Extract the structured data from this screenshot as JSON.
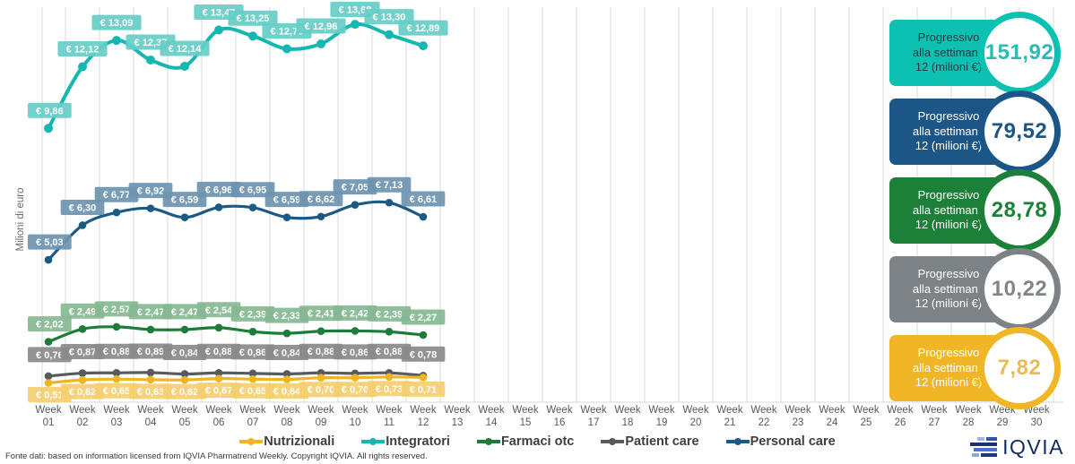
{
  "chart_data": {
    "type": "line",
    "title": "",
    "ylabel": "Milioni di euro",
    "x_tick_prefix": "Week",
    "categories": [
      "01",
      "02",
      "03",
      "04",
      "05",
      "06",
      "07",
      "08",
      "09",
      "10",
      "11",
      "12",
      "13",
      "14",
      "15",
      "16",
      "17",
      "18",
      "19",
      "20",
      "21",
      "22",
      "23",
      "24",
      "25",
      "26",
      "27",
      "28",
      "29",
      "30"
    ],
    "data_weeks": 12,
    "ylim": [
      0,
      14.5
    ],
    "grid": "vertical",
    "currency": "€",
    "badge_lines": [
      "Progressivo",
      "alla settimana",
      "12 (milioni €)"
    ],
    "series": [
      {
        "name": "Integratori",
        "color": "#14b8b0",
        "label_bg": "#66cdc7",
        "badge_color": "#0cc0b2",
        "badge_text_color": "#1e3a44",
        "value_color": "#2abcb2",
        "values": [
          9.86,
          12.12,
          13.09,
          12.37,
          12.14,
          13.47,
          13.25,
          12.78,
          12.96,
          13.68,
          13.3,
          12.89
        ],
        "labels": [
          "€ 9,86",
          "€ 12,12",
          "€ 13,09",
          "€ 12,37",
          "€ 12,14",
          "€ 13,47",
          "€ 13,25",
          "€ 12,78",
          "€ 12,96",
          "€ 13,68",
          "€ 13,30",
          "€ 12,89"
        ],
        "progressivo": "151,92"
      },
      {
        "name": "Personal care",
        "color": "#1c5a86",
        "label_bg": "#6d94b0",
        "badge_color": "#1c5687",
        "badge_text_color": "#ffffff",
        "value_color": "#1c5687",
        "values": [
          5.03,
          6.3,
          6.77,
          6.92,
          6.59,
          6.96,
          6.95,
          6.59,
          6.62,
          7.05,
          7.13,
          6.61
        ],
        "labels": [
          "€ 5,03",
          "€ 6,30",
          "€ 6,77",
          "€ 6,92",
          "€ 6,59",
          "€ 6,96",
          "€ 6,95",
          "€ 6,59",
          "€ 6,62",
          "€ 7,05",
          "€ 7,13",
          "€ 6,61"
        ],
        "progressivo": "79,52"
      },
      {
        "name": "Farmaci otc",
        "color": "#1d7c39",
        "label_bg": "#85b893",
        "badge_color": "#1c8039",
        "badge_text_color": "#ffffff",
        "value_color": "#1d8039",
        "values": [
          2.02,
          2.49,
          2.57,
          2.47,
          2.47,
          2.54,
          2.39,
          2.33,
          2.41,
          2.42,
          2.39,
          2.27
        ],
        "labels": [
          "€ 2,02",
          "€ 2,49",
          "€ 2,57",
          "€ 2,47",
          "€ 2,47",
          "€ 2,54",
          "€ 2,39",
          "€ 2,33",
          "€ 2,41",
          "€ 2,42",
          "€ 2,39",
          "€ 2,27"
        ],
        "progressivo": "28,78"
      },
      {
        "name": "Patient care",
        "color": "#565b5f",
        "label_bg": "#8a8a8a",
        "badge_color": "#7c8286",
        "badge_text_color": "#ffffff",
        "value_color": "#7f8589",
        "values": [
          0.76,
          0.87,
          0.88,
          0.89,
          0.84,
          0.88,
          0.86,
          0.84,
          0.88,
          0.86,
          0.88,
          0.78
        ],
        "labels": [
          "€ 0,76",
          "€ 0,87",
          "€ 0,88",
          "€ 0,89",
          "€ 0,84",
          "€ 0,88",
          "€ 0,86",
          "€ 0,84",
          "€ 0,88",
          "€ 0,86",
          "€ 0,88",
          "€ 0,78"
        ],
        "progressivo": "10,22"
      },
      {
        "name": "Nutrizionali",
        "color": "#eeb424",
        "label_bg": "#f4ce70",
        "badge_color": "#f0b626",
        "badge_text_color": "#ffffff",
        "value_color": "#e9bd55",
        "values": [
          0.51,
          0.62,
          0.65,
          0.63,
          0.62,
          0.67,
          0.65,
          0.64,
          0.7,
          0.7,
          0.73,
          0.71
        ],
        "labels": [
          "€ 0,51",
          "€ 0,62",
          "€ 0,65",
          "€ 0,63",
          "€ 0,62",
          "€ 0,67",
          "€ 0,65",
          "€ 0,64",
          "€ 0,70",
          "€ 0,70",
          "€ 0,73",
          "€ 0,71"
        ],
        "progressivo": "7,82"
      }
    ]
  },
  "legend": {
    "order": [
      "Nutrizionali",
      "Integratori",
      "Farmaci otc",
      "Patient care",
      "Personal care"
    ]
  },
  "footer": {
    "text": "Fonte dati: based on information licensed from IQVIA Pharmatrend Weekly. Copyright IQVIA. All rights reserved."
  },
  "logo": {
    "text": "IQVIA"
  }
}
